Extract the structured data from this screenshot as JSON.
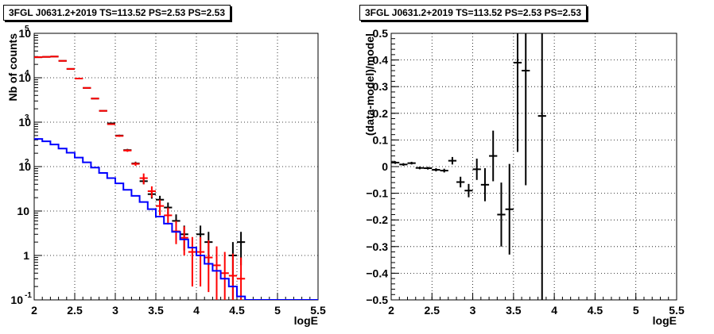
{
  "chart_data": [
    {
      "type": "histogram",
      "title": "3FGL J0631.2+2019 TS=113.52 PS=2.53 PS=2.53",
      "xlabel": "logE",
      "ylabel": "Nb of counts",
      "xlim": [
        2,
        5.5
      ],
      "ylim": [
        0.1,
        100000
      ],
      "yscale": "log",
      "grid": true,
      "x_ticks": [
        "2",
        "2.5",
        "3",
        "3.5",
        "4",
        "4.5",
        "5",
        "5.5"
      ],
      "y_ticks": [
        "10^{-1}",
        "1",
        "10",
        "10^{2}",
        "10^{3}",
        "10^{4}",
        "10^{5}"
      ],
      "bin_width": 0.1,
      "series": [
        {
          "color": "#000000",
          "style": "errorbars",
          "points": [
            {
              "x": 2.05,
              "y": 29000,
              "ylo": 28800,
              "yhi": 29200
            },
            {
              "x": 2.15,
              "y": 29500,
              "ylo": 29300,
              "yhi": 29700
            },
            {
              "x": 2.25,
              "y": 30000,
              "ylo": 29800,
              "yhi": 30200
            },
            {
              "x": 2.35,
              "y": 24000,
              "ylo": 23800,
              "yhi": 24200
            },
            {
              "x": 2.45,
              "y": 15800,
              "ylo": 15600,
              "yhi": 16000
            },
            {
              "x": 2.55,
              "y": 9600,
              "ylo": 9500,
              "yhi": 9700
            },
            {
              "x": 2.65,
              "y": 5900,
              "ylo": 5830,
              "yhi": 5980
            },
            {
              "x": 2.75,
              "y": 3400,
              "ylo": 3340,
              "yhi": 3460
            },
            {
              "x": 2.85,
              "y": 1800,
              "ylo": 1760,
              "yhi": 1840
            },
            {
              "x": 2.95,
              "y": 940,
              "ylo": 910,
              "yhi": 970
            },
            {
              "x": 3.05,
              "y": 500,
              "ylo": 478,
              "yhi": 522
            },
            {
              "x": 3.15,
              "y": 235,
              "ylo": 220,
              "yhi": 250
            },
            {
              "x": 3.25,
              "y": 118,
              "ylo": 107,
              "yhi": 129
            },
            {
              "x": 3.35,
              "y": 47,
              "ylo": 40,
              "yhi": 54
            },
            {
              "x": 3.45,
              "y": 24,
              "ylo": 19,
              "yhi": 29
            },
            {
              "x": 3.55,
              "y": 18,
              "ylo": 14,
              "yhi": 22
            },
            {
              "x": 3.65,
              "y": 12,
              "ylo": 8.5,
              "yhi": 15.5
            },
            {
              "x": 3.75,
              "y": 6,
              "ylo": 3.6,
              "yhi": 8.4
            },
            {
              "x": 3.85,
              "y": 3,
              "ylo": 1.3,
              "yhi": 4.7
            },
            {
              "x": 4.05,
              "y": 3,
              "ylo": 1.3,
              "yhi": 4.7
            },
            {
              "x": 4.15,
              "y": 2,
              "ylo": 0.6,
              "yhi": 3.4
            },
            {
              "x": 4.45,
              "y": 1,
              "ylo": 0.1,
              "yhi": 2.0
            },
            {
              "x": 4.55,
              "y": 2,
              "ylo": 0.6,
              "yhi": 3.4
            }
          ]
        },
        {
          "color": "#ff0000",
          "style": "errorbars",
          "points": [
            {
              "x": 2.05,
              "y": 29000,
              "ylo": 28800,
              "yhi": 29200
            },
            {
              "x": 2.15,
              "y": 29500,
              "ylo": 29300,
              "yhi": 29700
            },
            {
              "x": 2.25,
              "y": 30000,
              "ylo": 29800,
              "yhi": 30200
            },
            {
              "x": 2.35,
              "y": 24000,
              "ylo": 23800,
              "yhi": 24200
            },
            {
              "x": 2.45,
              "y": 15800,
              "ylo": 15600,
              "yhi": 16000
            },
            {
              "x": 2.55,
              "y": 9600,
              "ylo": 9500,
              "yhi": 9700
            },
            {
              "x": 2.65,
              "y": 5900,
              "ylo": 5830,
              "yhi": 5980
            },
            {
              "x": 2.75,
              "y": 3400,
              "ylo": 3340,
              "yhi": 3460
            },
            {
              "x": 2.85,
              "y": 1800,
              "ylo": 1760,
              "yhi": 1840
            },
            {
              "x": 2.95,
              "y": 900,
              "ylo": 870,
              "yhi": 930
            },
            {
              "x": 3.05,
              "y": 490,
              "ylo": 468,
              "yhi": 512
            },
            {
              "x": 3.15,
              "y": 230,
              "ylo": 215,
              "yhi": 245
            },
            {
              "x": 3.25,
              "y": 115,
              "ylo": 104,
              "yhi": 126
            },
            {
              "x": 3.35,
              "y": 55,
              "ylo": 40,
              "yhi": 70
            },
            {
              "x": 3.45,
              "y": 28,
              "ylo": 20,
              "yhi": 36
            },
            {
              "x": 3.55,
              "y": 13,
              "ylo": 8,
              "yhi": 18
            },
            {
              "x": 3.65,
              "y": 8,
              "ylo": 5,
              "yhi": 12
            },
            {
              "x": 3.75,
              "y": 3.5,
              "ylo": 1.8,
              "yhi": 6
            },
            {
              "x": 3.85,
              "y": 2.5,
              "ylo": 1.0,
              "yhi": 4.5
            },
            {
              "x": 3.95,
              "y": 1.2,
              "ylo": 0.2,
              "yhi": 2.6
            },
            {
              "x": 4.05,
              "y": 1.2,
              "ylo": 0.2,
              "yhi": 2.6
            },
            {
              "x": 4.15,
              "y": 0.9,
              "ylo": 0.15,
              "yhi": 2.2
            },
            {
              "x": 4.25,
              "y": 0.6,
              "ylo": 0.1,
              "yhi": 1.6
            },
            {
              "x": 4.35,
              "y": 0.4,
              "ylo": 0.1,
              "yhi": 1.2
            },
            {
              "x": 4.45,
              "y": 0.35,
              "ylo": 0.1,
              "yhi": 1.1
            },
            {
              "x": 4.55,
              "y": 0.3,
              "ylo": 0.1,
              "yhi": 0.9
            }
          ]
        },
        {
          "color": "#0000ff",
          "style": "step",
          "x_edges": [
            2.0,
            2.1,
            2.2,
            2.3,
            2.4,
            2.5,
            2.6,
            2.7,
            2.8,
            2.9,
            3.0,
            3.1,
            3.2,
            3.3,
            3.4,
            3.5,
            3.6,
            3.7,
            3.8,
            3.9,
            4.0,
            4.1,
            4.2,
            4.3,
            4.4,
            4.5,
            4.6,
            5.5
          ],
          "values": [
            420,
            370,
            315,
            255,
            205,
            160,
            125,
            95,
            72,
            55,
            42,
            30,
            22,
            16,
            11,
            7.5,
            5.2,
            3.4,
            2.3,
            1.5,
            1.0,
            0.65,
            0.45,
            0.3,
            0.2,
            0.12,
            0.1
          ]
        }
      ]
    },
    {
      "type": "scatter",
      "title": "3FGL J0631.2+2019 TS=113.52 PS=2.53 PS=2.53",
      "xlabel": "logE",
      "ylabel": "(data-model)/model",
      "xlim": [
        2,
        5.5
      ],
      "ylim": [
        -0.5,
        0.5
      ],
      "grid": true,
      "x_ticks": [
        "2",
        "2.5",
        "3",
        "3.5",
        "4",
        "4.5",
        "5",
        "5.5"
      ],
      "y_ticks": [
        "−0.5",
        "−0.4",
        "−0.3",
        "−0.2",
        "−0.1",
        "0",
        "0.1",
        "0.2",
        "0.3",
        "0.4",
        "0.5"
      ],
      "series": [
        {
          "color": "#000000",
          "points": [
            {
              "x": 2.05,
              "y": 0.015,
              "ylo": 0.01,
              "yhi": 0.02
            },
            {
              "x": 2.15,
              "y": 0.008,
              "ylo": 0.003,
              "yhi": 0.013
            },
            {
              "x": 2.25,
              "y": 0.013,
              "ylo": 0.008,
              "yhi": 0.018
            },
            {
              "x": 2.35,
              "y": -0.005,
              "ylo": -0.01,
              "yhi": 0.0
            },
            {
              "x": 2.45,
              "y": -0.006,
              "ylo": -0.011,
              "yhi": -0.001
            },
            {
              "x": 2.55,
              "y": -0.012,
              "ylo": -0.018,
              "yhi": -0.006
            },
            {
              "x": 2.65,
              "y": -0.015,
              "ylo": -0.022,
              "yhi": -0.008
            },
            {
              "x": 2.75,
              "y": 0.022,
              "ylo": 0.008,
              "yhi": 0.036
            },
            {
              "x": 2.85,
              "y": -0.058,
              "ylo": -0.078,
              "yhi": -0.038
            },
            {
              "x": 2.95,
              "y": -0.09,
              "ylo": -0.115,
              "yhi": -0.065
            },
            {
              "x": 3.05,
              "y": -0.01,
              "ylo": -0.05,
              "yhi": 0.03
            },
            {
              "x": 3.15,
              "y": -0.068,
              "ylo": -0.13,
              "yhi": -0.006
            },
            {
              "x": 3.25,
              "y": 0.04,
              "ylo": -0.055,
              "yhi": 0.135
            },
            {
              "x": 3.35,
              "y": -0.18,
              "ylo": -0.3,
              "yhi": -0.06
            },
            {
              "x": 3.45,
              "y": -0.16,
              "ylo": -0.33,
              "yhi": 0.01
            },
            {
              "x": 3.55,
              "y": 0.39,
              "ylo": 0.055,
              "yhi": 0.5
            },
            {
              "x": 3.65,
              "y": 0.36,
              "ylo": -0.07,
              "yhi": 0.5
            },
            {
              "x": 3.85,
              "y": 0.19,
              "ylo": -0.5,
              "yhi": 0.5
            }
          ]
        }
      ]
    }
  ]
}
